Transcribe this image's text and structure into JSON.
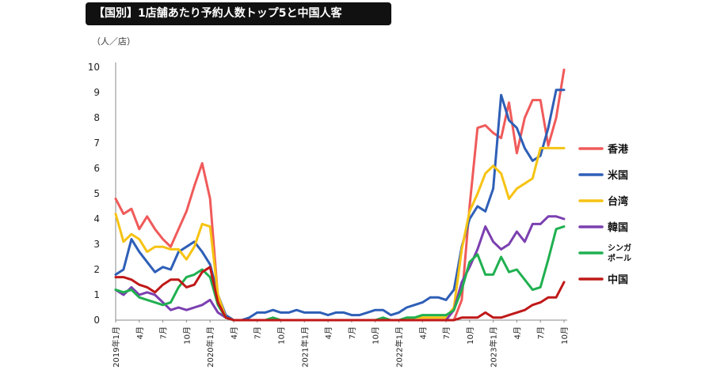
{
  "header": {
    "title": "【国別】1店舗あたり予約人数トップ5と中国人客",
    "unit": "（人／店）"
  },
  "chart_data": {
    "type": "line",
    "title": "【国別】1店舗あたり予約人数トップ5と中国人客",
    "ylabel": "（人／店）",
    "ylim": [
      0,
      10
    ],
    "yticks": [
      "0",
      "1",
      "2",
      "3",
      "4",
      "5",
      "6",
      "7",
      "8",
      "9",
      "10"
    ],
    "grid": false,
    "legend_position": "right",
    "x_tick_labels": [
      {
        "i": 0,
        "label": "2019年1月"
      },
      {
        "i": 3,
        "label": "4月"
      },
      {
        "i": 6,
        "label": "7月"
      },
      {
        "i": 9,
        "label": "10月"
      },
      {
        "i": 12,
        "label": "2020年1月"
      },
      {
        "i": 15,
        "label": "4月"
      },
      {
        "i": 18,
        "label": "7月"
      },
      {
        "i": 21,
        "label": "10月"
      },
      {
        "i": 24,
        "label": "2021年1月"
      },
      {
        "i": 27,
        "label": "4月"
      },
      {
        "i": 30,
        "label": "7月"
      },
      {
        "i": 33,
        "label": "10月"
      },
      {
        "i": 36,
        "label": "2022年1月"
      },
      {
        "i": 39,
        "label": "4月"
      },
      {
        "i": 42,
        "label": "7月"
      },
      {
        "i": 45,
        "label": "10月"
      },
      {
        "i": 48,
        "label": "2023年1月"
      },
      {
        "i": 51,
        "label": "4月"
      },
      {
        "i": 54,
        "label": "7月"
      },
      {
        "i": 57,
        "label": "10月"
      }
    ],
    "x_count": 58,
    "series": [
      {
        "name": "香港",
        "color": "#F05A5A",
        "values": [
          4.8,
          4.2,
          4.4,
          3.6,
          4.1,
          3.6,
          3.2,
          2.9,
          3.6,
          4.3,
          5.3,
          6.2,
          4.8,
          0.9,
          0.1,
          0,
          0,
          0,
          0,
          0,
          0,
          0,
          0,
          0,
          0,
          0,
          0,
          0,
          0,
          0,
          0,
          0,
          0,
          0,
          0,
          0,
          0,
          0,
          0,
          0,
          0,
          0,
          0,
          0,
          0.8,
          4.5,
          7.6,
          7.7,
          7.4,
          7.2,
          8.6,
          6.6,
          8.0,
          8.7,
          8.7,
          6.9,
          8.0,
          9.9
        ]
      },
      {
        "name": "米国",
        "color": "#2E5FB7",
        "values": [
          1.8,
          2.0,
          3.2,
          2.7,
          2.3,
          1.9,
          2.1,
          2.0,
          2.7,
          2.9,
          3.1,
          2.7,
          2.2,
          1.0,
          0.2,
          0,
          0,
          0.1,
          0.3,
          0.3,
          0.4,
          0.3,
          0.3,
          0.4,
          0.3,
          0.3,
          0.3,
          0.2,
          0.3,
          0.3,
          0.2,
          0.2,
          0.3,
          0.4,
          0.4,
          0.2,
          0.3,
          0.5,
          0.6,
          0.7,
          0.9,
          0.9,
          0.8,
          1.2,
          2.9,
          4.0,
          4.5,
          4.3,
          5.2,
          8.9,
          7.9,
          7.6,
          6.8,
          6.3,
          6.5,
          7.6,
          9.1,
          9.1
        ]
      },
      {
        "name": "台湾",
        "color": "#F6C312",
        "values": [
          4.2,
          3.1,
          3.4,
          3.2,
          2.7,
          2.9,
          2.9,
          2.8,
          2.8,
          2.4,
          2.9,
          3.8,
          3.7,
          1.0,
          0.1,
          0,
          0,
          0,
          0,
          0,
          0,
          0,
          0,
          0,
          0,
          0,
          0,
          0,
          0,
          0,
          0,
          0,
          0,
          0,
          0,
          0,
          0,
          0,
          0.1,
          0.1,
          0.1,
          0.1,
          0.1,
          0.5,
          2.8,
          4.3,
          5.0,
          5.8,
          6.1,
          5.8,
          4.8,
          5.2,
          5.4,
          5.6,
          6.8,
          6.8,
          6.8,
          6.8
        ]
      },
      {
        "name": "韓国",
        "color": "#7B3FB0",
        "values": [
          1.2,
          1.0,
          1.3,
          1.0,
          1.1,
          1.0,
          0.7,
          0.4,
          0.5,
          0.4,
          0.5,
          0.6,
          0.8,
          0.3,
          0.1,
          0,
          0,
          0,
          0,
          0,
          0,
          0,
          0,
          0,
          0,
          0,
          0,
          0,
          0,
          0,
          0,
          0,
          0,
          0,
          0,
          0,
          0,
          0,
          0,
          0,
          0,
          0,
          0,
          0.4,
          1.5,
          2.1,
          2.8,
          3.7,
          3.1,
          2.8,
          3.0,
          3.5,
          3.1,
          3.8,
          3.8,
          4.1,
          4.1,
          4.0
        ]
      },
      {
        "name": "シンガポール",
        "color": "#20B050",
        "values": [
          1.2,
          1.1,
          1.2,
          0.9,
          0.8,
          0.7,
          0.6,
          0.7,
          1.3,
          1.7,
          1.8,
          2.0,
          1.7,
          0.6,
          0.1,
          0,
          0,
          0,
          0,
          0,
          0.1,
          0,
          0,
          0,
          0,
          0,
          0,
          0,
          0,
          0,
          0,
          0,
          0,
          0,
          0.1,
          0,
          0,
          0.1,
          0.1,
          0.2,
          0.2,
          0.2,
          0.2,
          0.4,
          1.2,
          2.3,
          2.6,
          1.8,
          1.8,
          2.5,
          1.9,
          2.0,
          1.6,
          1.2,
          1.3,
          2.4,
          3.6,
          3.7
        ]
      },
      {
        "name": "中国",
        "color": "#C01818",
        "values": [
          1.7,
          1.7,
          1.6,
          1.4,
          1.3,
          1.1,
          1.4,
          1.6,
          1.6,
          1.3,
          1.4,
          1.9,
          2.1,
          0.7,
          0.1,
          0,
          0,
          0,
          0,
          0,
          0,
          0,
          0,
          0,
          0,
          0,
          0,
          0,
          0,
          0,
          0,
          0,
          0,
          0,
          0,
          0,
          0,
          0,
          0,
          0,
          0,
          0,
          0,
          0,
          0.1,
          0.1,
          0.1,
          0.3,
          0.1,
          0.1,
          0.2,
          0.3,
          0.4,
          0.6,
          0.7,
          0.9,
          0.9,
          1.5
        ]
      }
    ]
  },
  "legend": {
    "items": [
      {
        "label": "香港",
        "color": "#F05A5A"
      },
      {
        "label": "米国",
        "color": "#2E5FB7"
      },
      {
        "label": "台湾",
        "color": "#F6C312"
      },
      {
        "label": "韓国",
        "color": "#7B3FB0"
      },
      {
        "label": "シンガ",
        "label2": "ポール",
        "color": "#20B050"
      },
      {
        "label": "中国",
        "color": "#C01818"
      }
    ]
  }
}
